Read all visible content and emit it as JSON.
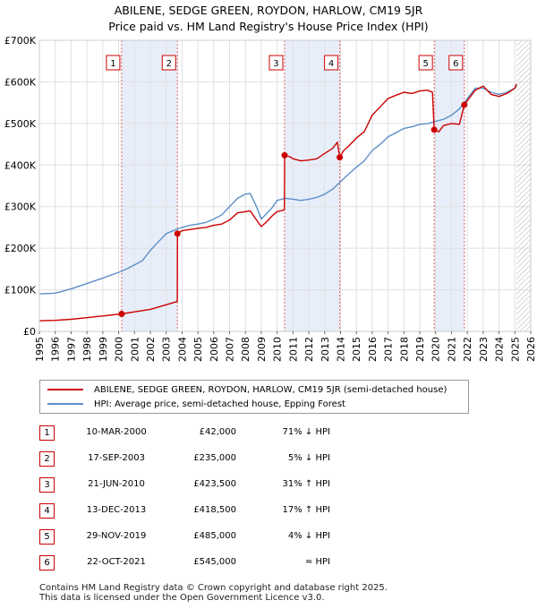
{
  "title": {
    "line1": "ABILENE, SEDGE GREEN, ROYDON, HARLOW, CM19 5JR",
    "line2": "Price paid vs. HM Land Registry's House Price Index (HPI)"
  },
  "colors": {
    "property": "#cc0000",
    "hpi": "#5b8fc9",
    "shade": "#e8eef9",
    "vline": "#e06060"
  },
  "chart_data": {
    "type": "line",
    "title": "Price paid vs. HM Land Registry's House Price Index (HPI)",
    "xlim": [
      1995,
      2026
    ],
    "ylim": [
      0,
      700000
    ],
    "y_ticks": [
      {
        "value": 0,
        "label": "£0"
      },
      {
        "value": 100000,
        "label": "£100K"
      },
      {
        "value": 200000,
        "label": "£200K"
      },
      {
        "value": 300000,
        "label": "£300K"
      },
      {
        "value": 400000,
        "label": "£400K"
      },
      {
        "value": 500000,
        "label": "£500K"
      },
      {
        "value": 600000,
        "label": "£600K"
      },
      {
        "value": 700000,
        "label": "£700K"
      }
    ],
    "x_ticks": [
      "1995",
      "1996",
      "1997",
      "1998",
      "1999",
      "2000",
      "2001",
      "2002",
      "2003",
      "2004",
      "2005",
      "2006",
      "2007",
      "2008",
      "2009",
      "2010",
      "2011",
      "2012",
      "2013",
      "2014",
      "2015",
      "2016",
      "2017",
      "2018",
      "2019",
      "2020",
      "2021",
      "2022",
      "2023",
      "2024",
      "2025",
      "2026"
    ],
    "forecast_from": 2025.1,
    "shaded_ranges": [
      [
        2000.19,
        2003.71
      ],
      [
        2010.47,
        2013.95
      ],
      [
        2019.91,
        2021.81
      ]
    ],
    "series": [
      {
        "name": "ABILENE, SEDGE GREEN, ROYDON, HARLOW, CM19 5JR (semi-detached house)",
        "color": "#cc0000",
        "points": [
          [
            1995.0,
            25500
          ],
          [
            1996.0,
            26500
          ],
          [
            1997.0,
            29000
          ],
          [
            1998.0,
            33000
          ],
          [
            1999.0,
            37000
          ],
          [
            2000.19,
            42000
          ],
          [
            2001.0,
            47000
          ],
          [
            2002.0,
            53000
          ],
          [
            2003.0,
            64000
          ],
          [
            2003.7,
            72000
          ],
          [
            2003.71,
            235000
          ],
          [
            2004.0,
            242000
          ],
          [
            2004.5,
            245000
          ],
          [
            2005.0,
            248000
          ],
          [
            2005.5,
            250000
          ],
          [
            2006.0,
            255000
          ],
          [
            2006.5,
            258000
          ],
          [
            2007.0,
            268000
          ],
          [
            2007.5,
            285000
          ],
          [
            2008.0,
            288000
          ],
          [
            2008.3,
            290000
          ],
          [
            2008.7,
            268000
          ],
          [
            2009.0,
            252000
          ],
          [
            2009.3,
            262000
          ],
          [
            2009.7,
            278000
          ],
          [
            2010.0,
            288000
          ],
          [
            2010.46,
            292000
          ],
          [
            2010.47,
            423500
          ],
          [
            2010.8,
            420000
          ],
          [
            2011.0,
            415000
          ],
          [
            2011.5,
            410000
          ],
          [
            2012.0,
            412000
          ],
          [
            2012.5,
            415000
          ],
          [
            2013.0,
            428000
          ],
          [
            2013.5,
            440000
          ],
          [
            2013.8,
            455000
          ],
          [
            2013.95,
            418500
          ],
          [
            2014.2,
            435000
          ],
          [
            2014.5,
            445000
          ],
          [
            2015.0,
            465000
          ],
          [
            2015.5,
            480000
          ],
          [
            2016.0,
            520000
          ],
          [
            2016.5,
            540000
          ],
          [
            2017.0,
            560000
          ],
          [
            2017.5,
            568000
          ],
          [
            2018.0,
            575000
          ],
          [
            2018.5,
            572000
          ],
          [
            2019.0,
            578000
          ],
          [
            2019.5,
            580000
          ],
          [
            2019.8,
            575000
          ],
          [
            2019.91,
            485000
          ],
          [
            2020.2,
            480000
          ],
          [
            2020.5,
            495000
          ],
          [
            2021.0,
            500000
          ],
          [
            2021.5,
            498000
          ],
          [
            2021.81,
            545000
          ],
          [
            2022.0,
            555000
          ],
          [
            2022.5,
            580000
          ],
          [
            2023.0,
            590000
          ],
          [
            2023.5,
            570000
          ],
          [
            2024.0,
            565000
          ],
          [
            2024.5,
            572000
          ],
          [
            2025.0,
            585000
          ],
          [
            2025.1,
            595000
          ]
        ]
      },
      {
        "name": "HPI: Average price, semi-detached house, Epping Forest",
        "color": "#5b8fc9",
        "points": [
          [
            1995.0,
            90000
          ],
          [
            1996.0,
            92000
          ],
          [
            1997.0,
            102000
          ],
          [
            1998.0,
            115000
          ],
          [
            1999.0,
            128000
          ],
          [
            2000.0,
            142000
          ],
          [
            2000.5,
            150000
          ],
          [
            2001.0,
            160000
          ],
          [
            2001.5,
            170000
          ],
          [
            2002.0,
            195000
          ],
          [
            2002.5,
            215000
          ],
          [
            2003.0,
            235000
          ],
          [
            2003.5,
            243000
          ],
          [
            2004.0,
            250000
          ],
          [
            2004.5,
            255000
          ],
          [
            2005.0,
            258000
          ],
          [
            2005.5,
            262000
          ],
          [
            2006.0,
            270000
          ],
          [
            2006.5,
            280000
          ],
          [
            2007.0,
            300000
          ],
          [
            2007.5,
            320000
          ],
          [
            2008.0,
            330000
          ],
          [
            2008.3,
            332000
          ],
          [
            2008.7,
            300000
          ],
          [
            2009.0,
            270000
          ],
          [
            2009.3,
            282000
          ],
          [
            2009.7,
            298000
          ],
          [
            2010.0,
            315000
          ],
          [
            2010.5,
            320000
          ],
          [
            2011.0,
            318000
          ],
          [
            2011.5,
            315000
          ],
          [
            2012.0,
            318000
          ],
          [
            2012.5,
            322000
          ],
          [
            2013.0,
            330000
          ],
          [
            2013.5,
            342000
          ],
          [
            2014.0,
            360000
          ],
          [
            2014.5,
            378000
          ],
          [
            2015.0,
            395000
          ],
          [
            2015.5,
            410000
          ],
          [
            2016.0,
            435000
          ],
          [
            2016.5,
            450000
          ],
          [
            2017.0,
            468000
          ],
          [
            2017.5,
            478000
          ],
          [
            2018.0,
            488000
          ],
          [
            2018.5,
            492000
          ],
          [
            2019.0,
            498000
          ],
          [
            2019.5,
            500000
          ],
          [
            2020.0,
            505000
          ],
          [
            2020.5,
            510000
          ],
          [
            2021.0,
            520000
          ],
          [
            2021.5,
            535000
          ],
          [
            2022.0,
            560000
          ],
          [
            2022.5,
            585000
          ],
          [
            2023.0,
            585000
          ],
          [
            2023.5,
            575000
          ],
          [
            2024.0,
            570000
          ],
          [
            2024.5,
            575000
          ],
          [
            2025.0,
            585000
          ],
          [
            2025.1,
            590000
          ]
        ]
      }
    ],
    "sales": [
      {
        "n": "1",
        "x": 2000.19,
        "y": 42000,
        "date": "10-MAR-2000",
        "price": "£42,000",
        "hpi": "71% ↓ HPI"
      },
      {
        "n": "2",
        "x": 2003.71,
        "y": 235000,
        "date": "17-SEP-2003",
        "price": "£235,000",
        "hpi": "5% ↓ HPI"
      },
      {
        "n": "3",
        "x": 2010.47,
        "y": 423500,
        "date": "21-JUN-2010",
        "price": "£423,500",
        "hpi": "31% ↑ HPI"
      },
      {
        "n": "4",
        "x": 2013.95,
        "y": 418500,
        "date": "13-DEC-2013",
        "price": "£418,500",
        "hpi": "17% ↑ HPI"
      },
      {
        "n": "5",
        "x": 2019.91,
        "y": 485000,
        "date": "29-NOV-2019",
        "price": "£485,000",
        "hpi": "4% ↓ HPI"
      },
      {
        "n": "6",
        "x": 2021.81,
        "y": 545000,
        "date": "22-OCT-2021",
        "price": "£545,000",
        "hpi": "≈ HPI"
      }
    ]
  },
  "legend": {
    "property": "ABILENE, SEDGE GREEN, ROYDON, HARLOW, CM19 5JR (semi-detached house)",
    "hpi": "HPI: Average price, semi-detached house, Epping Forest"
  },
  "footer": {
    "line1": "Contains HM Land Registry data © Crown copyright and database right 2025.",
    "line2": "This data is licensed under the Open Government Licence v3.0."
  }
}
